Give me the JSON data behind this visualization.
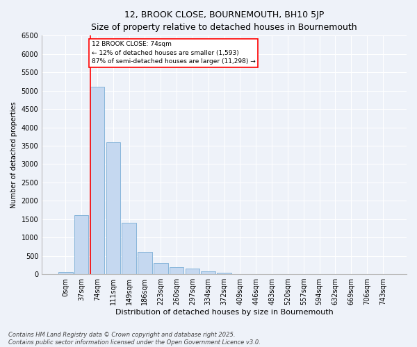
{
  "title": "12, BROOK CLOSE, BOURNEMOUTH, BH10 5JP",
  "subtitle": "Size of property relative to detached houses in Bournemouth",
  "xlabel": "Distribution of detached houses by size in Bournemouth",
  "ylabel": "Number of detached properties",
  "bin_labels": [
    "0sqm",
    "37sqm",
    "74sqm",
    "111sqm",
    "149sqm",
    "186sqm",
    "223sqm",
    "260sqm",
    "297sqm",
    "334sqm",
    "372sqm",
    "409sqm",
    "446sqm",
    "483sqm",
    "520sqm",
    "557sqm",
    "594sqm",
    "632sqm",
    "669sqm",
    "706sqm",
    "743sqm"
  ],
  "bar_values": [
    50,
    1600,
    5100,
    3600,
    1400,
    600,
    300,
    200,
    150,
    80,
    30,
    10,
    5,
    3,
    2,
    1,
    1,
    0,
    0,
    0,
    0
  ],
  "bar_color": "#c5d8f0",
  "bar_edge_color": "#7aaed6",
  "vline_color": "red",
  "annotation_text": "12 BROOK CLOSE: 74sqm\n← 12% of detached houses are smaller (1,593)\n87% of semi-detached houses are larger (11,298) →",
  "annotation_box_color": "white",
  "annotation_box_edge": "red",
  "ylim": [
    0,
    6500
  ],
  "yticks": [
    0,
    500,
    1000,
    1500,
    2000,
    2500,
    3000,
    3500,
    4000,
    4500,
    5000,
    5500,
    6000,
    6500
  ],
  "footer_line1": "Contains HM Land Registry data © Crown copyright and database right 2025.",
  "footer_line2": "Contains public sector information licensed under the Open Government Licence v3.0.",
  "bg_color": "#eef2f9",
  "plot_bg_color": "#eef2f9",
  "grid_color": "white",
  "title_fontsize": 9,
  "subtitle_fontsize": 8,
  "xlabel_fontsize": 8,
  "ylabel_fontsize": 7,
  "tick_fontsize": 7,
  "footer_fontsize": 6
}
